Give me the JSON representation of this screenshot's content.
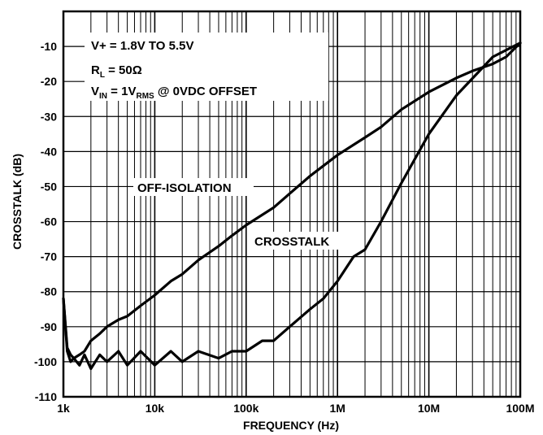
{
  "chart_data": {
    "type": "line",
    "title": "",
    "xlabel": "FREQUENCY (Hz)",
    "ylabel": "CROSSTALK (dB)",
    "x_scale": "log",
    "xlim": [
      1000,
      100000000
    ],
    "ylim": [
      -110,
      0
    ],
    "grid": true,
    "x_ticks": [
      {
        "value": 1000,
        "label": "1k"
      },
      {
        "value": 10000,
        "label": "10k"
      },
      {
        "value": 100000,
        "label": "100k"
      },
      {
        "value": 1000000,
        "label": "1M"
      },
      {
        "value": 10000000,
        "label": "10M"
      },
      {
        "value": 100000000,
        "label": "100M"
      }
    ],
    "y_ticks": [
      {
        "value": -10,
        "label": "-10"
      },
      {
        "value": -20,
        "label": "-20"
      },
      {
        "value": -30,
        "label": "-30"
      },
      {
        "value": -40,
        "label": "-40"
      },
      {
        "value": -50,
        "label": "-50"
      },
      {
        "value": -60,
        "label": "-60"
      },
      {
        "value": -70,
        "label": "-70"
      },
      {
        "value": -80,
        "label": "-80"
      },
      {
        "value": -90,
        "label": "-90"
      },
      {
        "value": -100,
        "label": "-100"
      },
      {
        "value": -110,
        "label": "-110"
      }
    ],
    "annotations": {
      "line1_text": "V+ = 1.8V TO 5.5V",
      "line2_main": "R",
      "line2_sub": "L",
      "line2_rest": " = 50Ω",
      "line3_main": "V",
      "line3_sub1": "IN",
      "line3_mid": " = 1V",
      "line3_sub2": "RMS",
      "line3_rest": " @ 0VDC OFFSET",
      "off_isolation_label": "OFF-ISOLATION",
      "crosstalk_label": "CROSSTALK"
    },
    "series": [
      {
        "name": "OFF-ISOLATION",
        "x": [
          1000,
          1100,
          1200,
          1300,
          1500,
          1700,
          2000,
          2500,
          3000,
          4000,
          5000,
          7000,
          10000,
          15000,
          20000,
          30000,
          50000,
          70000,
          100000,
          200000,
          300000,
          500000,
          1000000,
          2000000,
          3000000,
          5000000,
          10000000,
          20000000,
          30000000,
          50000000,
          70000000,
          100000000
        ],
        "y": [
          -82,
          -96,
          -98,
          -99,
          -98,
          -97,
          -94,
          -92,
          -90,
          -88,
          -87,
          -84,
          -81,
          -77,
          -75,
          -71,
          -67,
          -64,
          -61,
          -56,
          -52,
          -47,
          -41,
          -36,
          -33,
          -28,
          -23,
          -19,
          -17,
          -15,
          -13,
          -9
        ]
      },
      {
        "name": "CROSSTALK",
        "x": [
          1000,
          1100,
          1200,
          1300,
          1500,
          1700,
          2000,
          2500,
          3000,
          4000,
          5000,
          7000,
          10000,
          15000,
          20000,
          30000,
          50000,
          70000,
          100000,
          150000,
          200000,
          300000,
          500000,
          700000,
          1000000,
          1500000,
          2000000,
          3000000,
          5000000,
          10000000,
          20000000,
          50000000,
          100000000
        ],
        "y": [
          -82,
          -97,
          -100,
          -99,
          -101,
          -98,
          -102,
          -98,
          -100,
          -97,
          -101,
          -97,
          -101,
          -97,
          -100,
          -97,
          -99,
          -97,
          -97,
          -94,
          -94,
          -90,
          -85,
          -82,
          -77,
          -70,
          -68,
          -60,
          -49,
          -35,
          -24,
          -13,
          -9
        ]
      }
    ]
  }
}
